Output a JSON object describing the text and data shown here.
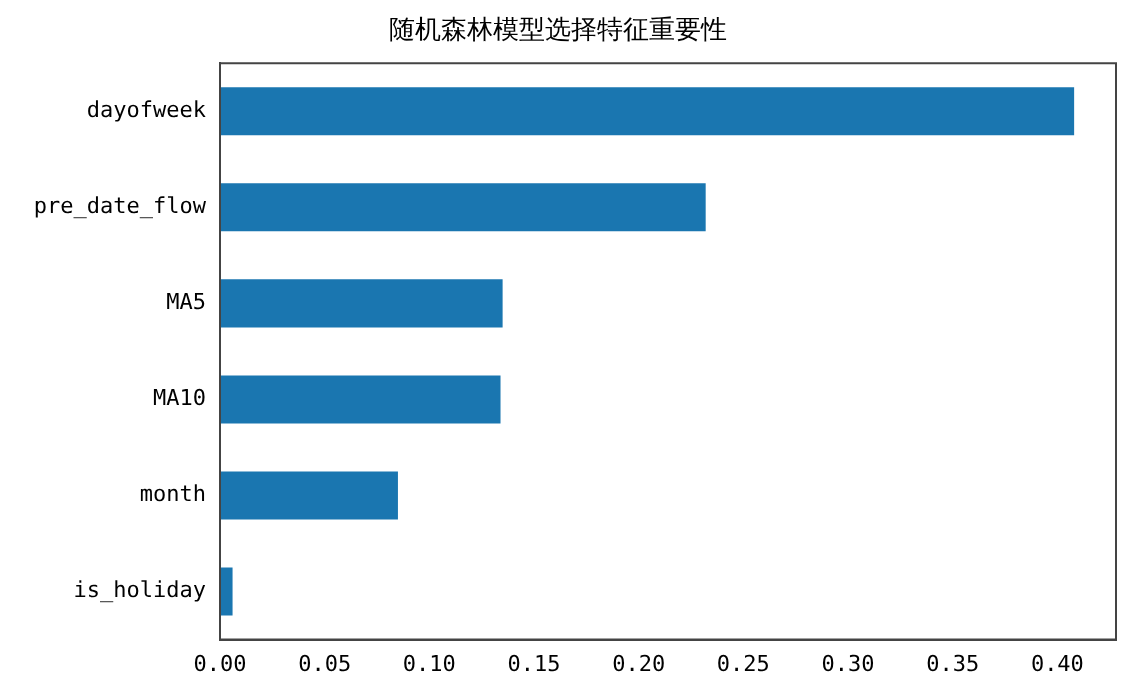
{
  "chart_data": {
    "type": "bar",
    "orientation": "horizontal",
    "title": "随机森林模型选择特征重要性",
    "categories": [
      "dayofweek",
      "pre_date_flow",
      "MA5",
      "MA10",
      "month",
      "is_holiday"
    ],
    "values": [
      0.408,
      0.232,
      0.135,
      0.134,
      0.085,
      0.006
    ],
    "color": "#1a76b0",
    "xlim": [
      0,
      0.428
    ],
    "xticks": [
      {
        "value": 0,
        "label": "0.00"
      },
      {
        "value": 0.05,
        "label": "0.05"
      },
      {
        "value": 0.1,
        "label": "0.10"
      },
      {
        "value": 0.15,
        "label": "0.15"
      },
      {
        "value": 0.2,
        "label": "0.20"
      },
      {
        "value": 0.25,
        "label": "0.25"
      },
      {
        "value": 0.3,
        "label": "0.30"
      },
      {
        "value": 0.35,
        "label": "0.35"
      },
      {
        "value": 0.4,
        "label": "0.40"
      }
    ],
    "grid": false,
    "legend": false
  }
}
